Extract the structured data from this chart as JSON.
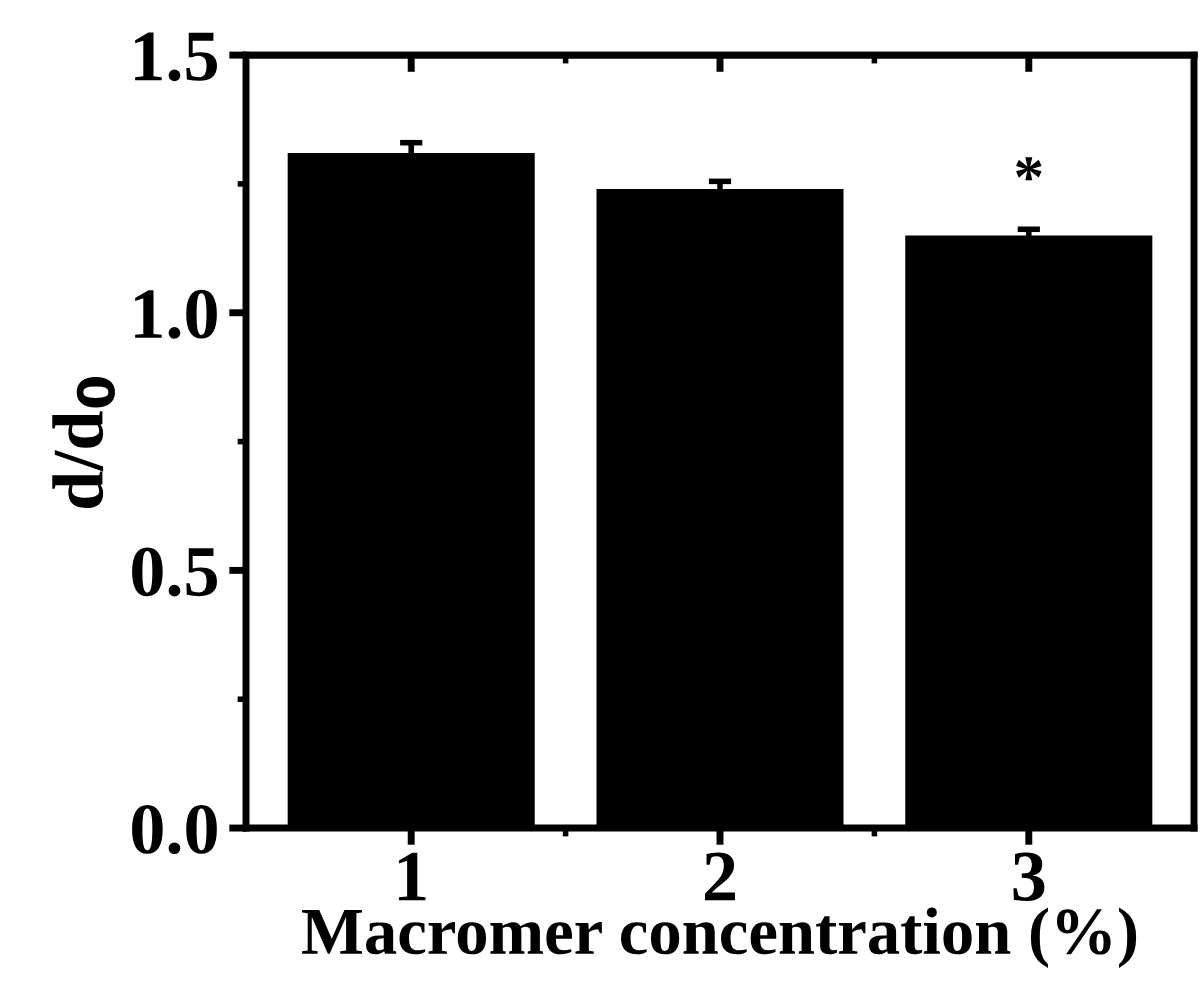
{
  "chart_data": {
    "type": "bar",
    "xlabel": "Macromer concentration (%)",
    "ylabel": "d/d$_{0}$",
    "categories": [
      "1",
      "2",
      "3"
    ],
    "values": [
      1.31,
      1.24,
      1.15
    ],
    "errors": [
      0.02,
      0.015,
      0.012
    ],
    "color": "#000000",
    "ylim": [
      0,
      1.5
    ],
    "yticks": [
      {
        "value": 0,
        "label": "0.0"
      },
      {
        "value": 0.5,
        "label": "0.5"
      },
      {
        "value": 1,
        "label": "1.0"
      },
      {
        "value": 1.5,
        "label": "1.5"
      }
    ],
    "annotations": [
      {
        "text": "*",
        "x": "3",
        "y": 1.15
      }
    ],
    "grid": false,
    "legend": false
  }
}
